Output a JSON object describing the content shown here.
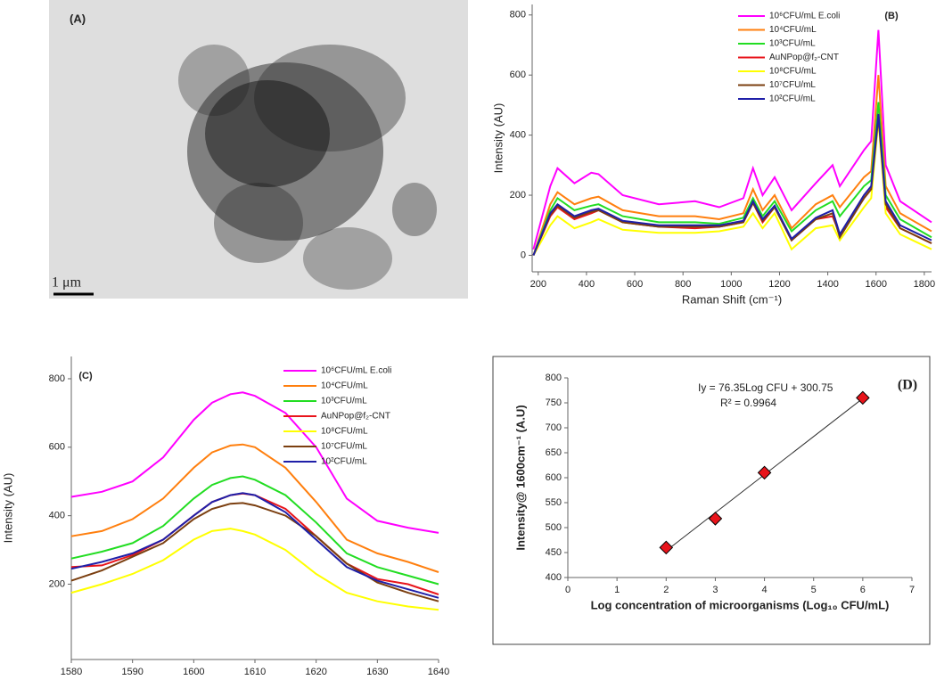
{
  "image_panel": {
    "label": "(A)",
    "scale_bar": "1 μm"
  },
  "chart_data": [
    {
      "type": "line",
      "panel_label": "(B)",
      "x_label": "Raman Shift (cm⁻¹)",
      "y_label": "Intensity (AU)",
      "x": [
        180,
        250,
        280,
        350,
        420,
        450,
        550,
        700,
        850,
        950,
        1050,
        1090,
        1130,
        1180,
        1250,
        1350,
        1420,
        1450,
        1550,
        1580,
        1610,
        1640,
        1700,
        1830
      ],
      "xlim": [
        175,
        1830
      ],
      "xticks": [
        200,
        400,
        600,
        800,
        1000,
        1200,
        1400,
        1600,
        1800
      ],
      "ylim": [
        -55,
        835
      ],
      "yticks": [
        0,
        200,
        400,
        600,
        800
      ],
      "series": [
        {
          "name": "10⁶CFU/mL E.coli",
          "color": "#ff00ff",
          "values": [
            20,
            230,
            290,
            240,
            275,
            270,
            200,
            170,
            180,
            160,
            190,
            290,
            200,
            260,
            150,
            240,
            300,
            230,
            350,
            380,
            750,
            300,
            180,
            110
          ]
        },
        {
          "name": "10⁴CFU/mL",
          "color": "#ff7f0e",
          "values": [
            0,
            170,
            210,
            170,
            190,
            195,
            150,
            130,
            130,
            120,
            140,
            220,
            150,
            200,
            90,
            170,
            200,
            160,
            260,
            280,
            600,
            230,
            140,
            80
          ]
        },
        {
          "name": "10³CFU/mL",
          "color": "#22dd22",
          "values": [
            0,
            150,
            190,
            150,
            165,
            170,
            130,
            110,
            110,
            105,
            125,
            190,
            130,
            180,
            80,
            150,
            180,
            130,
            230,
            250,
            510,
            200,
            120,
            60
          ]
        },
        {
          "name": "AuNPop@f₂-CNT",
          "color": "#e8141b",
          "values": [
            0,
            130,
            160,
            120,
            140,
            150,
            110,
            95,
            90,
            95,
            110,
            175,
            110,
            160,
            50,
            120,
            130,
            70,
            190,
            220,
            470,
            160,
            90,
            40
          ]
        },
        {
          "name": "10⁸CFU/mL",
          "color": "#ffff00",
          "values": [
            0,
            100,
            130,
            90,
            110,
            120,
            85,
            75,
            75,
            80,
            95,
            140,
            90,
            140,
            20,
            90,
            100,
            50,
            160,
            190,
            450,
            140,
            70,
            20
          ]
        },
        {
          "name": "10⁷CFU/mL",
          "color": "#7b3f10",
          "values": [
            0,
            135,
            165,
            125,
            145,
            150,
            110,
            95,
            95,
            95,
            110,
            175,
            115,
            160,
            50,
            120,
            140,
            60,
            190,
            220,
            460,
            170,
            90,
            40
          ]
        },
        {
          "name": "10²CFU/mL",
          "color": "#1f1fa8",
          "values": [
            0,
            140,
            170,
            130,
            150,
            155,
            115,
            100,
            100,
            100,
            115,
            180,
            120,
            165,
            55,
            125,
            150,
            70,
            200,
            230,
            470,
            180,
            100,
            50
          ]
        }
      ]
    },
    {
      "type": "line",
      "panel_label": "(C)",
      "x_label": "Raman Shift (cm⁻¹)",
      "y_label": "Intensity (AU)",
      "x": [
        1580,
        1585,
        1590,
        1595,
        1600,
        1603,
        1606,
        1608,
        1610,
        1615,
        1620,
        1625,
        1630,
        1635,
        1640
      ],
      "xlim": [
        1580,
        1640
      ],
      "xticks": [
        1580,
        1590,
        1600,
        1610,
        1620,
        1630,
        1640
      ],
      "ylim": [
        -20,
        865
      ],
      "yticks": [
        200,
        400,
        600,
        800
      ],
      "series": [
        {
          "name": "10⁶CFU/mL E.coli",
          "color": "#ff00ff",
          "values": [
            455,
            470,
            500,
            570,
            680,
            730,
            755,
            760,
            750,
            700,
            600,
            450,
            385,
            365,
            350
          ]
        },
        {
          "name": "10⁴CFU/mL",
          "color": "#ff7f0e",
          "values": [
            340,
            355,
            390,
            450,
            540,
            585,
            605,
            608,
            600,
            540,
            440,
            330,
            290,
            265,
            235
          ]
        },
        {
          "name": "10³CFU/mL",
          "color": "#22dd22",
          "values": [
            275,
            295,
            320,
            370,
            450,
            490,
            510,
            515,
            505,
            460,
            380,
            290,
            250,
            225,
            200
          ]
        },
        {
          "name": "AuNPop@f₂-CNT",
          "color": "#e8141b",
          "values": [
            250,
            255,
            285,
            330,
            400,
            440,
            460,
            465,
            460,
            420,
            340,
            260,
            215,
            200,
            170
          ]
        },
        {
          "name": "10⁸CFU/mL",
          "color": "#ffff00",
          "values": [
            175,
            200,
            230,
            270,
            330,
            355,
            362,
            355,
            345,
            300,
            230,
            175,
            150,
            135,
            125
          ]
        },
        {
          "name": "10⁷CFU/mL",
          "color": "#7b3f10",
          "values": [
            210,
            240,
            280,
            320,
            390,
            420,
            435,
            437,
            430,
            400,
            340,
            260,
            205,
            175,
            150
          ]
        },
        {
          "name": "10²CFU/mL",
          "color": "#1f1fa8",
          "values": [
            245,
            265,
            290,
            330,
            400,
            440,
            460,
            466,
            460,
            410,
            330,
            250,
            210,
            185,
            160
          ]
        }
      ]
    },
    {
      "type": "scatter",
      "panel_label": "(D)",
      "x_label": "Log concentration  of microorganisms (Log₁₀ CFU/mL)",
      "y_label": "Intensity@ 1600cm⁻¹ (A.U)",
      "equation": "Iy = 76.35Log CFU + 300.75",
      "r_squared": "R² = 0.9964",
      "x": [
        2,
        3,
        4,
        6
      ],
      "values": [
        460,
        518,
        610,
        760
      ],
      "color": "#e8141b",
      "fit": {
        "slope": 76.35,
        "intercept": 300.75
      },
      "xlim": [
        0,
        7
      ],
      "xticks": [
        0,
        1,
        2,
        3,
        4,
        5,
        6,
        7
      ],
      "ylim": [
        400,
        800
      ],
      "yticks": [
        400,
        450,
        500,
        550,
        600,
        650,
        700,
        750,
        800
      ]
    }
  ]
}
